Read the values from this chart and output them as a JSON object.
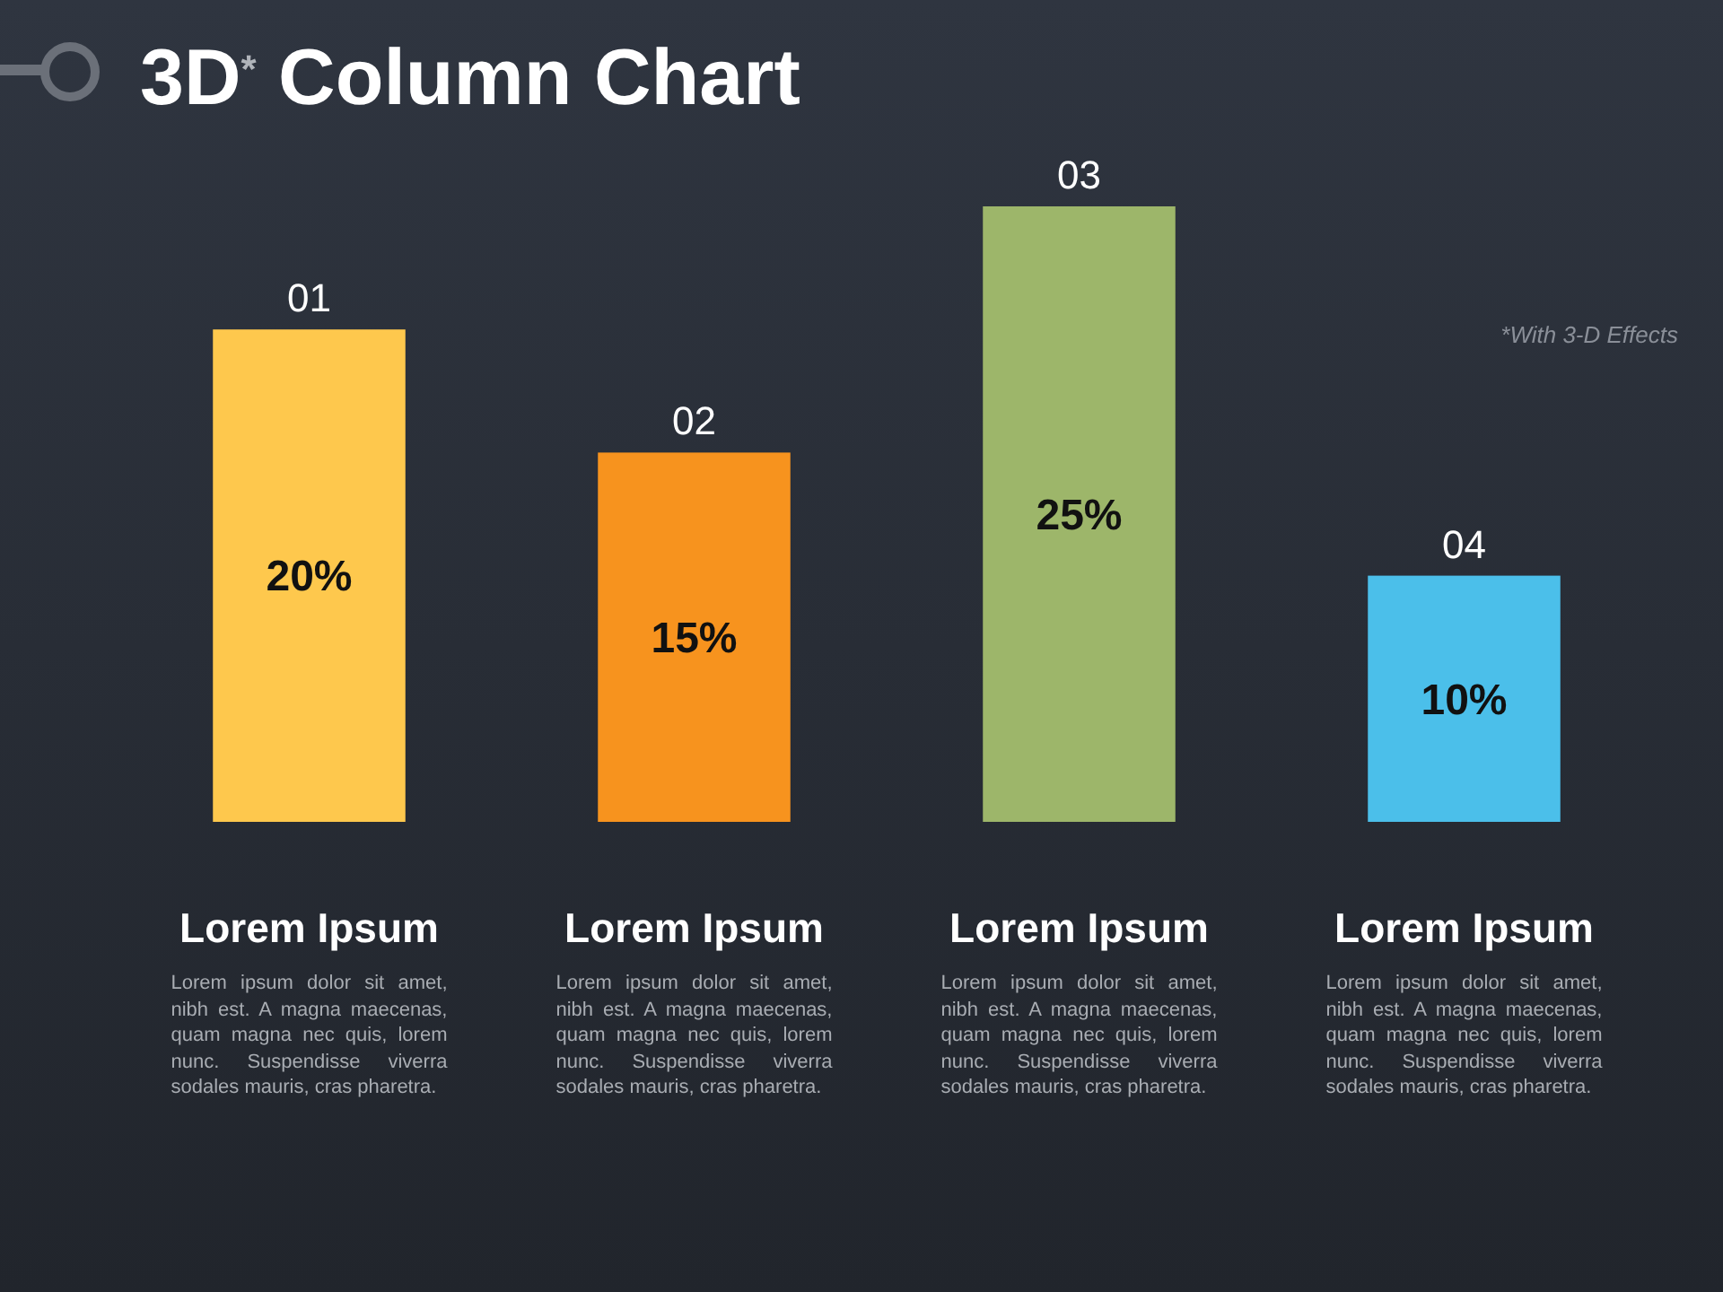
{
  "chart_data": {
    "type": "bar",
    "title": "3D$^{*}$ Column Chart",
    "categories": [
      "01",
      "02",
      "03",
      "04"
    ],
    "values": [
      20,
      15,
      25,
      10
    ],
    "colors": [
      "#fec84d",
      "#f7931e",
      "#9db66a",
      "#4bbfea"
    ],
    "value_labels": [
      "20%",
      "15%",
      "25%",
      "10%"
    ],
    "annotations": [
      "Lorem Ipsum",
      "Lorem ipsum dolor sit amet, nibh est. A magna maecenas, quam magna nec quis, lorem nunc. Suspendisse viverra sodales mauris, cras pharetra.",
      "Lorem Ipsum",
      "Lorem ipsum dolor sit amet, nibh est. A magna maecenas, quam magna nec quis, lorem nunc. Suspendisse viverra sodales mauris, cras pharetra.",
      "Lorem Ipsum",
      "Lorem ipsum dolor sit amet, nibh est. A magna maecenas, quam magna nec quis, lorem nunc. Suspendisse viverra sodales mauris, cras pharetra.",
      "Lorem Ipsum",
      "Lorem ipsum dolor sit amet, nibh est. A magna maecenas, quam magna nec quis, lorem nunc. Suspendisse viverra sodales mauris, cras pharetra.",
      "*With 3-D Effects"
    ]
  }
}
